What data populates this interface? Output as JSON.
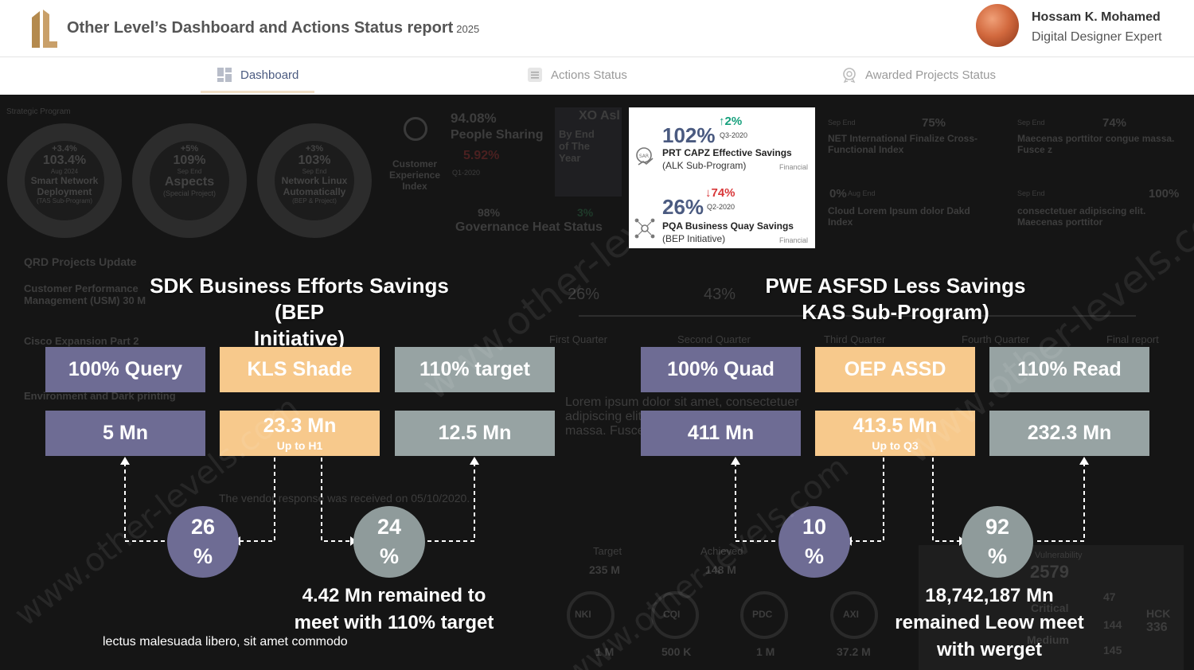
{
  "header": {
    "title": "Other Level’s Dashboard and Actions Status report",
    "year": "2025",
    "user_name": "Hossam K. Mohamed",
    "user_role": "Digital Designer Expert"
  },
  "tabs": [
    {
      "label": "Dashboard",
      "icon": "dashboard-grid-icon",
      "active": true
    },
    {
      "label": "Actions Status",
      "icon": "list-icon",
      "active": false
    },
    {
      "label": "Awarded Projects Status",
      "icon": "award-icon",
      "active": false
    }
  ],
  "background": {
    "strategic_label": "Strategic Program",
    "rings": [
      {
        "pct": "103.4%",
        "change": "+3.4%",
        "period": "Aug 2024",
        "label": "Smart Network Deployment",
        "sub": "(TAS Sub-Program)"
      },
      {
        "pct": "109%",
        "change": "+5%",
        "period": "Sep End",
        "label": "Aspects",
        "sub": "(Special Project)"
      },
      {
        "pct": "103%",
        "change": "+3%",
        "period": "Sep End",
        "label": "Network Linux Automatically",
        "sub": "(BEP & Project)"
      }
    ],
    "cx_label": "Customer Experience Index",
    "people_pct": "94.08%",
    "people_label": "People Sharing",
    "people_change": "5.92%",
    "people_period": "Q1-2020",
    "xo_label": "XO Asl",
    "xo_sub": "By End of The Year",
    "gov_pct": "98%",
    "gov_change": "3%",
    "gov_label": "Governance Heat Status",
    "right_cards": [
      {
        "period": "Sep End",
        "pct": "75%",
        "label": "NET International Finalize Cross-Functional Index"
      },
      {
        "period": "Sep End",
        "pct": "74%",
        "label": "Maecenas porttitor congue massa. Fusce z"
      },
      {
        "period": "Aug End",
        "pct": "0%",
        "label": "Cloud Lorem Ipsum dolor Dakd Index"
      },
      {
        "period": "Sep End",
        "pct": "100%",
        "label": "consectetuer adipiscing elit. Maecenas porttitor"
      }
    ],
    "qrd_label": "QRD Projects Update",
    "quarters": [
      "First Quarter",
      "Second Quarter",
      "Third Quarter",
      "Fourth Quarter",
      "Final report"
    ],
    "quarter_pcts": [
      "26%",
      "43%"
    ],
    "left_rows": [
      "Customer Performance Management (USM) 30 M",
      "Cisco Expansion Part 2",
      "Environment and Dark printing",
      "The vendor response was received on 05/10/2020."
    ],
    "lorem": "Lorem ipsum dolor sit amet, consectetuer adipiscing elit. Maecenas porttitor congue massa. Fusce",
    "target_label": "Target",
    "target_val": "235 M",
    "achieved_label": "Achieved",
    "achieved_val": "148 M",
    "gauges": [
      "NKI",
      "CQI",
      "PDC",
      "AXI"
    ],
    "gauge_vals": [
      "1 M",
      "500 K",
      "1 M",
      "37.2 M"
    ],
    "vuln_label": "Vulnerability",
    "vuln_val": "2579",
    "critical_label": "Critical",
    "medium_label": "Medium",
    "hck_label": "HCK",
    "hck_val": "336",
    "side_vals": [
      "47",
      "144",
      "145"
    ]
  },
  "savings_card": {
    "items": [
      {
        "pct": "102%",
        "change": "2%",
        "direction": "up",
        "period": "Q3-2020",
        "title": "PRT CAPZ Effective Savings",
        "sub": "(ALK Sub-Program)",
        "tag": "Financial",
        "icon": "savings-chart-icon"
      },
      {
        "pct": "26%",
        "change": "74%",
        "direction": "down",
        "period": "Q2-2020",
        "title": "PQA Business Quay Savings",
        "sub": "(BEP Initiative)",
        "tag": "Financial",
        "icon": "network-coins-icon"
      }
    ]
  },
  "left_section": {
    "title_line1": "SDK Business Efforts Savings (BEP",
    "title_line2": "Initiative)",
    "boxes_top": [
      "100% Query",
      "KLS Shade",
      "110% target"
    ],
    "boxes_bottom": [
      {
        "value": "5 Mn",
        "sub": ""
      },
      {
        "value": "23.3 Mn",
        "sub": "Up to H1"
      },
      {
        "value": "12.5 Mn",
        "sub": ""
      }
    ],
    "bubbles": [
      {
        "num": "26",
        "unit": "%"
      },
      {
        "num": "24",
        "unit": "%"
      }
    ],
    "summary_line1": "4.42 Mn remained to",
    "summary_line2": "meet with 110% target",
    "footer_note": "lectus malesuada libero, sit amet commodo"
  },
  "right_section": {
    "title_line1": "PWE  ASFSD Less Savings",
    "title_line2": "KAS Sub-Program)",
    "boxes_top": [
      "100% Quad",
      "OEP ASSD",
      "110% Read"
    ],
    "boxes_bottom": [
      {
        "value": "411 Mn",
        "sub": ""
      },
      {
        "value": "413.5 Mn",
        "sub": "Up to Q3"
      },
      {
        "value": "232.3 Mn",
        "sub": ""
      }
    ],
    "bubbles": [
      {
        "num": "10",
        "unit": "%"
      },
      {
        "num": "92",
        "unit": "%"
      }
    ],
    "summary_line1": "18,742,187 Mn",
    "summary_line2": "remained Leow meet",
    "summary_line3": "with werget"
  },
  "watermark": "www.other-levels.com",
  "colors": {
    "purple": "#6e6c94",
    "orange": "#f7c98c",
    "grey": "#97a3a3",
    "up": "#16a07c",
    "down": "#d8383a",
    "brand": "#b48a4e"
  }
}
